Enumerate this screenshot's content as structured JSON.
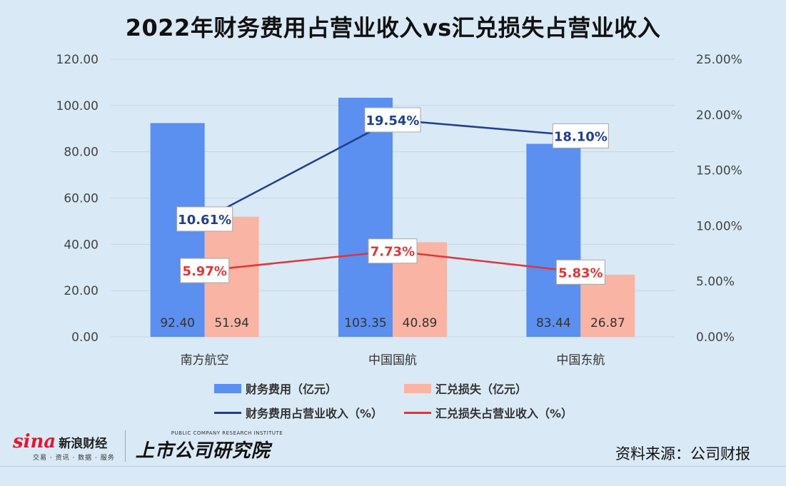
{
  "title": "2022年财务费用占营业收入vs汇兑损失占营业收入",
  "source": "资料来源：公司财报",
  "brand": {
    "sina_word": "sina",
    "sina_cn": "新浪财经",
    "sina_sub": "交易 · 资讯 · 数据 · 服务",
    "inst_en": "PUBLIC COMPANY RESEARCH INSTITUTE",
    "inst_cn": "上市公司研究院"
  },
  "colors": {
    "finance_bar": "#5b8ff0",
    "fx_bar": "#f9b4a4",
    "finance_line": "#1f3f91",
    "fx_line": "#e23437",
    "finance_label_text": "#1f3f91",
    "fx_label_text": "#e23437"
  },
  "chart_data": {
    "type": "bar",
    "categories": [
      "南方航空",
      "中国国航",
      "中国东航"
    ],
    "series": [
      {
        "name": "财务费用（亿元）",
        "type": "bar",
        "axis": "left",
        "values": [
          92.4,
          103.35,
          83.44
        ],
        "labels": [
          "92.40",
          "103.35",
          "83.44"
        ]
      },
      {
        "name": "汇兑损失（亿元）",
        "type": "bar",
        "axis": "left",
        "values": [
          51.94,
          40.89,
          26.87
        ],
        "labels": [
          "51.94",
          "40.89",
          "26.87"
        ]
      },
      {
        "name": "财务费用占营业收入（%）",
        "type": "line",
        "axis": "right",
        "values": [
          10.61,
          19.54,
          18.1
        ],
        "labels": [
          "10.61%",
          "19.54%",
          "18.10%"
        ]
      },
      {
        "name": "汇兑损失占营业收入（%）",
        "type": "line",
        "axis": "right",
        "values": [
          5.97,
          7.73,
          5.83
        ],
        "labels": [
          "5.97%",
          "7.73%",
          "5.83%"
        ]
      }
    ],
    "y_left": {
      "min": 0,
      "max": 120,
      "ticks": [
        "0.00",
        "20.00",
        "40.00",
        "60.00",
        "80.00",
        "100.00",
        "120.00"
      ]
    },
    "y_right": {
      "min": 0,
      "max": 25,
      "ticks": [
        "0.00%",
        "5.00%",
        "10.00%",
        "15.00%",
        "20.00%",
        "25.00%"
      ]
    },
    "grid": true,
    "legend_position": "bottom"
  }
}
